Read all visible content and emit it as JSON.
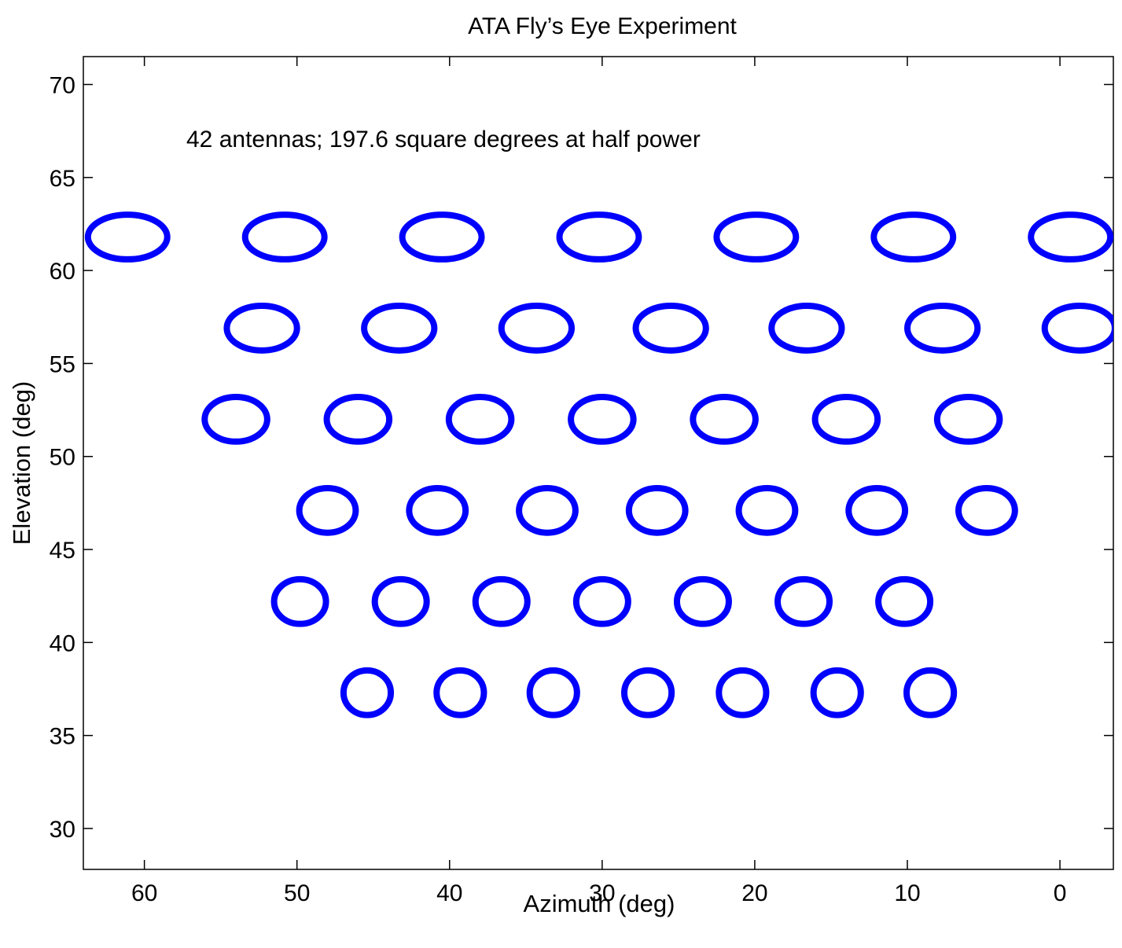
{
  "chart_data": {
    "type": "scatter",
    "title": "ATA Fly’s Eye Experiment",
    "xlabel": "Azimuth (deg)",
    "ylabel": "Elevation (deg)",
    "annotation": "42 antennas; 197.6 square degrees at half power",
    "xlim": [
      64,
      -3.5
    ],
    "ylim": [
      27.8,
      71.5
    ],
    "x_reversed": true,
    "xticks": [
      60,
      50,
      40,
      30,
      20,
      10,
      0
    ],
    "yticks": [
      30,
      35,
      40,
      45,
      50,
      55,
      60,
      65,
      70
    ],
    "grid": false,
    "marker": "ellipse outline (half-power beam)",
    "color": "#0000ff",
    "rows": [
      {
        "elevation": 61.8,
        "beam_half_width_az": 2.6,
        "beam_half_height_el": 1.2,
        "azimuths": [
          61.1,
          50.8,
          40.5,
          30.2,
          19.9,
          9.6,
          -0.7
        ]
      },
      {
        "elevation": 56.9,
        "beam_half_width_az": 2.3,
        "beam_half_height_el": 1.2,
        "azimuths": [
          52.3,
          43.3,
          34.3,
          25.5,
          16.6,
          7.7,
          -1.3
        ]
      },
      {
        "elevation": 52.0,
        "beam_half_width_az": 2.05,
        "beam_half_height_el": 1.2,
        "azimuths": [
          54.0,
          46.0,
          38.0,
          30.0,
          22.0,
          14.0,
          6.0
        ]
      },
      {
        "elevation": 47.1,
        "beam_half_width_az": 1.85,
        "beam_half_height_el": 1.2,
        "azimuths": [
          48.0,
          40.8,
          33.6,
          26.4,
          19.2,
          12.0,
          4.8
        ]
      },
      {
        "elevation": 42.2,
        "beam_half_width_az": 1.7,
        "beam_half_height_el": 1.2,
        "azimuths": [
          49.8,
          43.2,
          36.6,
          30.0,
          23.4,
          16.8,
          10.2
        ]
      },
      {
        "elevation": 37.3,
        "beam_half_width_az": 1.55,
        "beam_half_height_el": 1.2,
        "azimuths": [
          45.4,
          39.3,
          33.2,
          27.0,
          20.8,
          14.6,
          8.5
        ]
      }
    ]
  }
}
